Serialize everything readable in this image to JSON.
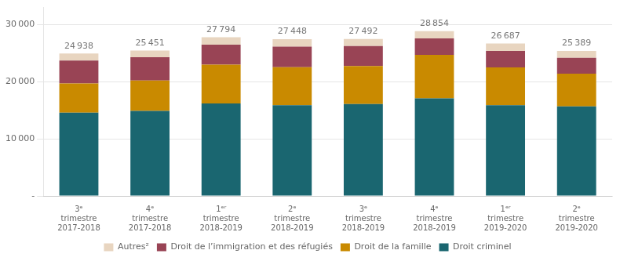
{
  "chart_data": {
    "type": "bar",
    "stacked": true,
    "categories": [
      "3ᵉ\ntrimestre\n2017-2018",
      "4ᵉ\ntrimestre\n2017-2018",
      "1ᵉʳ\ntrimestre\n2018-2019",
      "2ᵉ\ntrimestre\n2018-2019",
      "3ᵉ\ntrimestre\n2018-2019",
      "4ᵉ\ntrimestre\n2018-2019",
      "1ᵉʳ\ntrimestre\n2019-2020",
      "2ᵉ\ntrimestre\n2019-2020"
    ],
    "series": [
      {
        "name": "Droit criminel",
        "color": "#1a6670",
        "values": [
          14600,
          14900,
          16200,
          15900,
          16100,
          17100,
          15900,
          15700
        ]
      },
      {
        "name": "Droit de la famille",
        "color": "#c98a00",
        "values": [
          5100,
          5300,
          6800,
          6650,
          6650,
          7600,
          6600,
          5700
        ]
      },
      {
        "name": "Droit de l’immigration et des réfugiés",
        "color": "#994455",
        "values": [
          4000,
          4100,
          3500,
          3600,
          3500,
          2900,
          2900,
          2800
        ]
      },
      {
        "name": "Autres²",
        "color": "#e8d5c0",
        "values": [
          1238,
          1151,
          1294,
          1298,
          1242,
          1254,
          1287,
          1189
        ]
      }
    ],
    "totals": [
      24938,
      25451,
      27794,
      27448,
      27492,
      28854,
      26687,
      25389
    ],
    "total_labels": [
      "24 938",
      "25 451",
      "27 794",
      "27 448",
      "27 492",
      "28 854",
      "26 687",
      "25 389"
    ],
    "ylim": [
      0,
      33000
    ],
    "yticks": [
      {
        "value": 0,
        "label": "-"
      },
      {
        "value": 10000,
        "label": "10 000"
      },
      {
        "value": 20000,
        "label": "20 000"
      },
      {
        "value": 30000,
        "label": "30 000"
      }
    ],
    "grid": true,
    "legend": "bottom"
  }
}
